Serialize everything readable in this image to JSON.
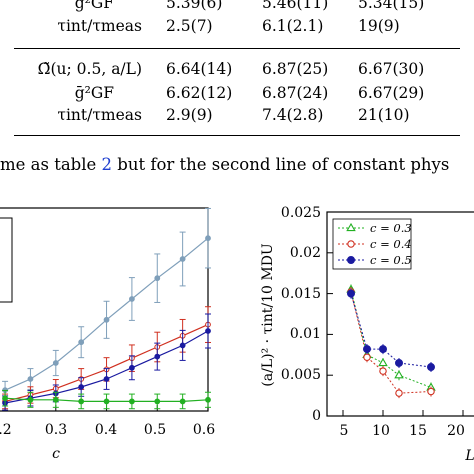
{
  "table": {
    "rows": [
      {
        "label": "ḡ²GF",
        "values": [
          "5.39(6)",
          "5.46(11)",
          "5.34(15)"
        ]
      },
      {
        "label": "τint/τmeas",
        "values": [
          "2.5(7)",
          "6.1(2.1)",
          "19(9)"
        ]
      },
      {
        "label": "Ω̃(u; 0.5, a/L)",
        "values": [
          "6.64(14)",
          "6.87(25)",
          "6.67(30)"
        ]
      },
      {
        "label": "ḡ²GF",
        "values": [
          "6.62(12)",
          "6.87(24)",
          "6.67(29)"
        ]
      },
      {
        "label": "τint/τmeas",
        "values": [
          "2.9(9)",
          "7.4(2.8)",
          "21(10)"
        ]
      }
    ]
  },
  "caption": {
    "prefix": "me as table ",
    "ref": "2",
    "suffix": " but for the second line of constant phys"
  },
  "left_plot": {
    "xlabel": "c",
    "xticks": [
      ".2",
      "0.3",
      "0.4",
      "0.5",
      "0.6"
    ]
  },
  "right_plot": {
    "ylabel": "(a/L)² · τint/10 MDU",
    "yticks": [
      "0",
      "0.005",
      "0.01",
      "0.015",
      "0.02",
      "0.025"
    ],
    "xticks": [
      "5",
      "10",
      "15",
      "20"
    ],
    "xlabel": "L",
    "legend": [
      "c = 0.3",
      "c = 0.4",
      "c = 0.5"
    ]
  },
  "colors": {
    "green": "#22b022",
    "red": "#d03020",
    "blue": "#1a1aa0",
    "steel": "#7f9fba",
    "caption_ref": "#1f3fd0"
  },
  "chart_data": [
    {
      "type": "line",
      "xlabel": "c",
      "xlim": [
        0.19,
        0.6
      ],
      "x": [
        0.2,
        0.25,
        0.3,
        0.35,
        0.4,
        0.45,
        0.5,
        0.55,
        0.6
      ],
      "series": [
        {
          "color": "#7f9fba",
          "values": [
            0.13,
            0.2,
            0.3,
            0.43,
            0.57,
            0.7,
            0.83,
            0.95,
            1.08
          ]
        },
        {
          "color": "#d03020",
          "values": [
            0.06,
            0.1,
            0.14,
            0.2,
            0.26,
            0.33,
            0.4,
            0.47,
            0.54
          ]
        },
        {
          "color": "#1a1aa0",
          "values": [
            0.05,
            0.08,
            0.11,
            0.15,
            0.2,
            0.27,
            0.34,
            0.41,
            0.5
          ]
        },
        {
          "color": "#22b022",
          "values": [
            0.08,
            0.07,
            0.07,
            0.06,
            0.06,
            0.06,
            0.06,
            0.06,
            0.07
          ]
        }
      ]
    },
    {
      "type": "scatter",
      "xlabel": "L",
      "ylabel": "(a/L)² · τint/10 MDU",
      "xlim": [
        3,
        23
      ],
      "ylim": [
        0,
        0.025
      ],
      "series": [
        {
          "name": "c = 0.3",
          "color": "#22b022",
          "marker": "triangle",
          "points": [
            [
              6,
              0.0155
            ],
            [
              8,
              0.0075
            ],
            [
              10,
              0.0065
            ],
            [
              12,
              0.005
            ],
            [
              16,
              0.0035
            ]
          ]
        },
        {
          "name": "c = 0.4",
          "color": "#d03020",
          "marker": "circle",
          "points": [
            [
              6,
              0.0152
            ],
            [
              8,
              0.0072
            ],
            [
              10,
              0.0055
            ],
            [
              12,
              0.0028
            ],
            [
              16,
              0.003
            ]
          ]
        },
        {
          "name": "c = 0.5",
          "color": "#1a1aa0",
          "marker": "filled-circle",
          "points": [
            [
              6,
              0.015
            ],
            [
              8,
              0.0082
            ],
            [
              10,
              0.0082
            ],
            [
              12,
              0.0065
            ],
            [
              16,
              0.006
            ]
          ]
        }
      ]
    }
  ]
}
